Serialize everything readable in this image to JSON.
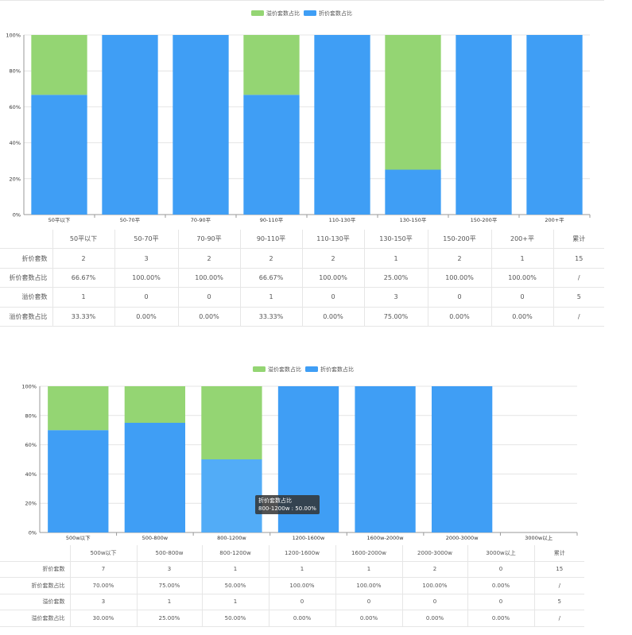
{
  "colors": {
    "green": "#94d573",
    "blue": "#3f9ef5",
    "blue_highlight": "#52acf7"
  },
  "chart_data": [
    {
      "type": "bar",
      "stacked": true,
      "legend": [
        "溢价套数占比",
        "折价套数占比"
      ],
      "categories": [
        "50平以下",
        "50-70平",
        "70-90平",
        "90-110平",
        "110-130平",
        "130-150平",
        "150-200平",
        "200+平"
      ],
      "series": [
        {
          "name": "折价套数占比",
          "values": [
            66.67,
            100,
            100,
            66.67,
            100,
            25,
            100,
            100
          ]
        },
        {
          "name": "溢价套数占比",
          "values": [
            33.33,
            0,
            0,
            33.33,
            0,
            75,
            0,
            0
          ]
        }
      ],
      "ylim": [
        0,
        100
      ],
      "yticks": [
        "0%",
        "20%",
        "40%",
        "60%",
        "80%",
        "100%"
      ],
      "legend_position": "top-center",
      "grid": true
    },
    {
      "type": "bar",
      "stacked": true,
      "legend": [
        "溢价套数占比",
        "折价套数占比"
      ],
      "categories": [
        "500w以下",
        "500-800w",
        "800-1200w",
        "1200-1600w",
        "1600w-2000w",
        "2000-3000w",
        "3000w以上"
      ],
      "series": [
        {
          "name": "折价套数占比",
          "values": [
            70,
            75,
            50,
            100,
            100,
            100,
            0
          ]
        },
        {
          "name": "溢价套数占比",
          "values": [
            30,
            25,
            50,
            0,
            0,
            0,
            0
          ]
        }
      ],
      "ylim": [
        0,
        100
      ],
      "yticks": [
        "0%",
        "20%",
        "40%",
        "60%",
        "80%",
        "100%"
      ],
      "legend_position": "top-center",
      "grid": true,
      "highlight_index": 2,
      "tooltip": {
        "line1": "折价套数占比",
        "line2": "800-1200w : 50.00%"
      }
    }
  ],
  "tables": [
    {
      "header": [
        "",
        "50平以下",
        "50-70平",
        "70-90平",
        "90-110平",
        "110-130平",
        "130-150平",
        "150-200平",
        "200+平",
        "累计"
      ],
      "rows": [
        [
          "折价套数",
          "2",
          "3",
          "2",
          "2",
          "2",
          "1",
          "2",
          "1",
          "15"
        ],
        [
          "折价套数占比",
          "66.67%",
          "100.00%",
          "100.00%",
          "66.67%",
          "100.00%",
          "25.00%",
          "100.00%",
          "100.00%",
          "/"
        ],
        [
          "溢价套数",
          "1",
          "0",
          "0",
          "1",
          "0",
          "3",
          "0",
          "0",
          "5"
        ],
        [
          "溢价套数占比",
          "33.33%",
          "0.00%",
          "0.00%",
          "33.33%",
          "0.00%",
          "75.00%",
          "0.00%",
          "0.00%",
          "/"
        ]
      ]
    },
    {
      "header": [
        "",
        "500w以下",
        "500-800w",
        "800-1200w",
        "1200-1600w",
        "1600-2000w",
        "2000-3000w",
        "3000w以上",
        "累计"
      ],
      "rows": [
        [
          "折价套数",
          "7",
          "3",
          "1",
          "1",
          "1",
          "2",
          "0",
          "15"
        ],
        [
          "折价套数占比",
          "70.00%",
          "75.00%",
          "50.00%",
          "100.00%",
          "100.00%",
          "100.00%",
          "0.00%",
          "/"
        ],
        [
          "溢价套数",
          "3",
          "1",
          "1",
          "0",
          "0",
          "0",
          "0",
          "5"
        ],
        [
          "溢价套数占比",
          "30.00%",
          "25.00%",
          "50.00%",
          "0.00%",
          "0.00%",
          "0.00%",
          "0.00%",
          "/"
        ]
      ]
    }
  ]
}
